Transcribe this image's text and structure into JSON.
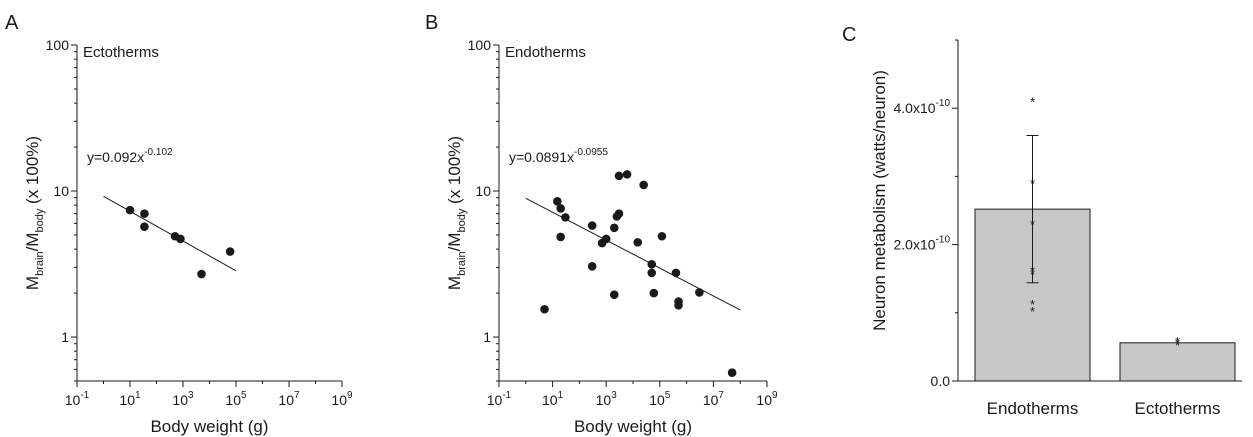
{
  "chart_data": [
    {
      "type": "scatter",
      "panel": "A",
      "annotation": "Ectotherms",
      "xlabel": "Body weight (g)",
      "ylabel": {
        "base": "M",
        "sub1": "brain",
        "sep": "/M",
        "sub2": "body",
        "suffix": " (x 100%)"
      },
      "x_scale": "log",
      "y_scale": "log",
      "xlim": [
        0.1,
        1000000000
      ],
      "ylim": [
        0.5,
        100
      ],
      "x_ticks": [
        {
          "value": 0.1,
          "base": "10",
          "exp": "-1"
        },
        {
          "value": 10,
          "base": "10",
          "exp": "1"
        },
        {
          "value": 1000,
          "base": "10",
          "exp": "3"
        },
        {
          "value": 100000,
          "base": "10",
          "exp": "5"
        },
        {
          "value": 10000000,
          "base": "10",
          "exp": "7"
        },
        {
          "value": 1000000000,
          "base": "10",
          "exp": "9"
        }
      ],
      "y_ticks": [
        {
          "value": 1,
          "label": "1"
        },
        {
          "value": 10,
          "label": "10"
        },
        {
          "value": 100,
          "label": "100"
        }
      ],
      "fit": {
        "equation_base": "y=0.092x",
        "equation_exp": "-0.102",
        "a": 0.092,
        "b": -0.102,
        "x_range": [
          1,
          100000
        ]
      },
      "points": [
        {
          "x": 10,
          "y": 7.4
        },
        {
          "x": 35,
          "y": 7.0
        },
        {
          "x": 35,
          "y": 5.7
        },
        {
          "x": 500,
          "y": 4.9
        },
        {
          "x": 800,
          "y": 4.7
        },
        {
          "x": 5000,
          "y": 2.7
        },
        {
          "x": 60000,
          "y": 3.85
        }
      ]
    },
    {
      "type": "scatter",
      "panel": "B",
      "annotation": "Endotherms",
      "xlabel": "Body weight (g)",
      "ylabel": {
        "base": "M",
        "sub1": "brain",
        "sep": "/M",
        "sub2": "body",
        "suffix": " (x 100%)"
      },
      "x_scale": "log",
      "y_scale": "log",
      "xlim": [
        0.1,
        1000000000
      ],
      "ylim": [
        0.5,
        100
      ],
      "x_ticks": [
        {
          "value": 0.1,
          "base": "10",
          "exp": "-1"
        },
        {
          "value": 10,
          "base": "10",
          "exp": "1"
        },
        {
          "value": 1000,
          "base": "10",
          "exp": "3"
        },
        {
          "value": 100000,
          "base": "10",
          "exp": "5"
        },
        {
          "value": 10000000,
          "base": "10",
          "exp": "7"
        },
        {
          "value": 1000000000,
          "base": "10",
          "exp": "9"
        }
      ],
      "y_ticks": [
        {
          "value": 1,
          "label": "1"
        },
        {
          "value": 10,
          "label": "10"
        },
        {
          "value": 100,
          "label": "100"
        }
      ],
      "fit": {
        "equation_base": "y=0.0891x",
        "equation_exp": "-0.0955",
        "a": 0.0891,
        "b": -0.0955,
        "x_range": [
          1,
          100000000
        ]
      },
      "points": [
        {
          "x": 5,
          "y": 1.55
        },
        {
          "x": 15,
          "y": 8.5
        },
        {
          "x": 20,
          "y": 7.6
        },
        {
          "x": 30,
          "y": 6.6
        },
        {
          "x": 20,
          "y": 4.85
        },
        {
          "x": 300,
          "y": 5.8
        },
        {
          "x": 300,
          "y": 3.05
        },
        {
          "x": 700,
          "y": 4.4
        },
        {
          "x": 1000,
          "y": 4.7
        },
        {
          "x": 2000,
          "y": 5.6
        },
        {
          "x": 2500,
          "y": 6.7
        },
        {
          "x": 3000,
          "y": 7.0
        },
        {
          "x": 3000,
          "y": 12.7
        },
        {
          "x": 6000,
          "y": 13.0
        },
        {
          "x": 2000,
          "y": 1.95
        },
        {
          "x": 15000,
          "y": 4.45
        },
        {
          "x": 25000,
          "y": 11.0
        },
        {
          "x": 50000,
          "y": 3.15
        },
        {
          "x": 50000,
          "y": 2.75
        },
        {
          "x": 60000,
          "y": 2.0
        },
        {
          "x": 120000,
          "y": 4.9
        },
        {
          "x": 400000,
          "y": 2.75
        },
        {
          "x": 500000,
          "y": 1.75
        },
        {
          "x": 500000,
          "y": 1.65
        },
        {
          "x": 3000000,
          "y": 2.02
        },
        {
          "x": 50000000,
          "y": 0.57
        }
      ]
    },
    {
      "type": "bar",
      "panel": "C",
      "categories": [
        "Endotherms",
        "Ectotherms"
      ],
      "values": [
        2.52e-10,
        5.6e-11
      ],
      "errors": [
        1.08e-10,
        0
      ],
      "ylabel": "Neuron metabolism (watts/neuron)",
      "ylim": [
        0,
        5e-10
      ],
      "y_ticks": [
        {
          "value": 0,
          "base": "0.0",
          "exp": ""
        },
        {
          "value": 2e-10,
          "base": "2.0x10",
          "exp": "-10"
        },
        {
          "value": 4e-10,
          "base": "4.0x10",
          "exp": "-10"
        }
      ],
      "points": [
        [
          4.1e-10,
          2.9e-10,
          2.3e-10,
          1.62e-10,
          1.57e-10,
          1.13e-10,
          1.03e-10
        ],
        [
          5.9e-11,
          5.6e-11,
          5.3e-11
        ]
      ],
      "colors": {
        "bar": "#c8c8c8",
        "marks": "#1a1a1a"
      }
    }
  ]
}
